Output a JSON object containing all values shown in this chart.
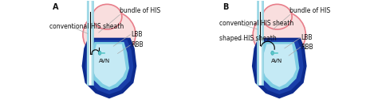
{
  "bg_color": "#ffffff",
  "panel_A_label": "A",
  "panel_B_label": "B",
  "label_conventional_his": "conventional HIS sheath",
  "label_bundle_his": "bundle of HIS",
  "label_lbb": "LBB",
  "label_rbb": "RBB",
  "label_avn": "AVN",
  "label_shaped_his": "shaped HIS sheath",
  "color_light_blue": "#a8dde9",
  "color_mid_blue": "#7ecde3",
  "color_dark_blue": "#0d2b8e",
  "color_pink_outline": "#e87e8a",
  "color_pink_fill": "#f9dede",
  "color_teal": "#5bc8c8",
  "color_black": "#111111",
  "color_gray_line": "#aaaaaa",
  "fontsize_label": 5.5,
  "fontsize_panel": 7
}
